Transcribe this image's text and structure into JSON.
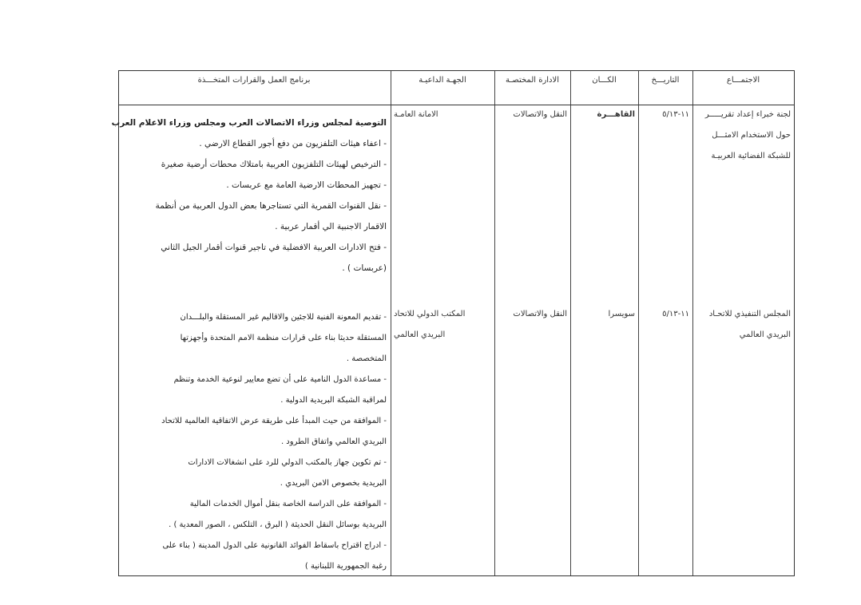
{
  "headers": {
    "meeting": "الاجتمـــاع",
    "date": "التاريـــخ",
    "place": "الكـــان",
    "department": "الادارة المختصـة",
    "inviting_party": "الجهـة الداعيـة",
    "program": "برنامج العمل والقرارات المتخـــذة"
  },
  "rows": [
    {
      "meeting": [
        "لجنة خبراء إعداد تقريـــــر",
        "حول الاستخدام الامثـــل",
        "للشبكة الفضائية العربيـة"
      ],
      "date": "١١-٥/١٣",
      "place": "القاهـــرة",
      "department": "النقل والاتصالات",
      "inviting_party": [
        "الامانة العامـة"
      ],
      "program": [
        "التوصية لمجلس وزراء الاتصالات العرب ومجلس وزراء الاعلام العرب",
        "-  اعفاء هيئات التلفزيون من دفع أجور القطاع الارضي .",
        "-  الترخيص لهيئات التلفزيون العربية بامتلاك محطات أرضية صغيرة",
        "-  تجهيز المحطات الارضية العامة مع عربسات .",
        "-  نقل القنوات القمرية التي تستاجرها بعض الدول العربية من أنظمة",
        "الاقمار الاجنبية الي أقمار عربية .",
        "-  فتح الادارات العربية الافضلية في تاجير قنوات أقمار الجيل الثاني",
        "(عربسات ) ."
      ]
    },
    {
      "meeting": [
        "المجلس التنفيذي للاتحـاد",
        "البريدي العالمي"
      ],
      "date": "١١-٥/١٣",
      "place": "سويسرا",
      "department": "النقل والاتصالات",
      "inviting_party": [
        "المكتب الدولي للاتحاد",
        "البريدي العالمي"
      ],
      "program": [
        "-  تقديم المعونة الفنية للاجئين والاقاليم غير المستقلة والبلـــدان",
        "المستقلة حديثا بناء على قرارات منظمة الامم المتحدة وأجهزتها",
        "المتخصصة .",
        "-  مساعدة الدول النامية على أن تضع معايير لنوعية الخدمة وتنظم",
        "لمراقبة الشبكة البريدية الدولية .",
        "-  الموافقة من حيث المبدأ على طريقة عرض الاتفاقية العالمية للاتحاد",
        "البريدي العالمي واتفاق الطرود .",
        "-  تم تكوين جهاز بالمكتب الدولي للرد على انشغالات الادارات",
        "البريدية بخصوص الامن البريدي .",
        "-  الموافقة على الدراسة الخاصة بنقل أموال الخدمات المالية",
        "البريدية بوسائل النقل الحديثة ( البرق ، التلكس ، الصور المعدية ) .",
        "-  ادراج اقتراح باسقاط الفوائد القانونية على الدول المدينة ( بناء على",
        "رغبة الجمهورية اللبنانية )"
      ]
    }
  ]
}
